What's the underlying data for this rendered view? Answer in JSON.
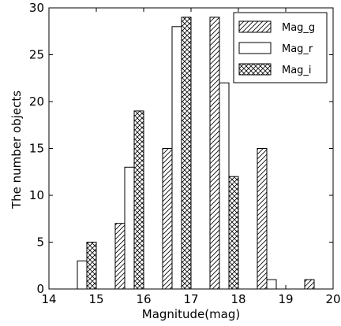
{
  "chart_data": {
    "type": "bar",
    "xlabel": "Magnitude(mag)",
    "ylabel": "The number objects",
    "xlim": [
      14,
      20
    ],
    "ylim": [
      0,
      30
    ],
    "xticks": [
      "14",
      "15",
      "16",
      "17",
      "18",
      "19",
      "20"
    ],
    "yticks": [
      "0",
      "5",
      "10",
      "15",
      "20",
      "25",
      "30"
    ],
    "grid": false,
    "legend_position": "top-right",
    "series": [
      {
        "name": "Mag_g",
        "pattern": "diagonal-hatch",
        "x": [
          14.6,
          15.4,
          16.4,
          17.4,
          18.4,
          19.4
        ],
        "values": [
          0,
          7,
          15,
          29,
          15,
          1
        ]
      },
      {
        "name": "Mag_r",
        "pattern": "none",
        "x": [
          14.6,
          15.6,
          16.6,
          17.6,
          18.6,
          19.6
        ],
        "values": [
          3,
          13,
          28,
          22,
          1,
          0
        ]
      },
      {
        "name": "Mag_i",
        "pattern": "cross-hatch",
        "x": [
          14.8,
          15.8,
          16.8,
          17.8,
          18.8,
          19.8
        ],
        "values": [
          5,
          19,
          29,
          12,
          0,
          0
        ]
      }
    ]
  }
}
